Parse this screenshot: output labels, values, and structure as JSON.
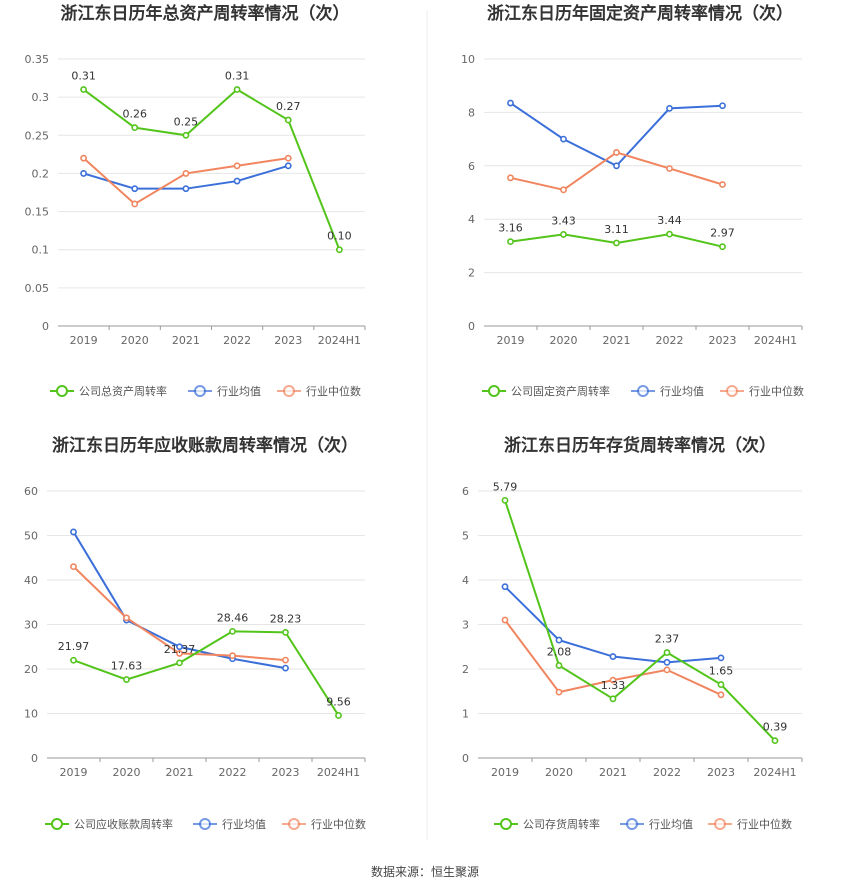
{
  "source_label": "数据来源：恒生聚源",
  "colors": {
    "company": "#52c41a",
    "industry_avg": "#3b6fd9",
    "industry_median": "#f0855f"
  },
  "chart_data": [
    {
      "type": "line",
      "title": "浙江东日历年总资产周转率情况（次）",
      "categories": [
        "2019",
        "2020",
        "2021",
        "2022",
        "2023",
        "2024H1"
      ],
      "ylim": [
        0,
        0.35
      ],
      "yticks": [
        "0",
        "0.05",
        "0.1",
        "0.15",
        "0.2",
        "0.25",
        "0.3",
        "0.35"
      ],
      "series": [
        {
          "name": "公司总资产周转率",
          "key": "company",
          "values": [
            0.31,
            0.26,
            0.25,
            0.31,
            0.27,
            0.1
          ],
          "labels": [
            "0.31",
            "0.26",
            "0.25",
            "0.31",
            "0.27",
            "0.10"
          ]
        },
        {
          "name": "行业均值",
          "key": "industry_avg",
          "values": [
            0.2,
            0.18,
            0.18,
            0.19,
            0.21,
            null
          ]
        },
        {
          "name": "行业中位数",
          "key": "industry_median",
          "values": [
            0.22,
            0.16,
            0.2,
            0.21,
            0.22,
            null
          ]
        }
      ]
    },
    {
      "type": "line",
      "title": "浙江东日历年固定资产周转率情况（次）",
      "categories": [
        "2019",
        "2020",
        "2021",
        "2022",
        "2023",
        "2024H1"
      ],
      "ylim": [
        0,
        10
      ],
      "yticks": [
        "0",
        "2",
        "4",
        "6",
        "8",
        "10"
      ],
      "series": [
        {
          "name": "公司固定资产周转率",
          "key": "company",
          "values": [
            3.16,
            3.43,
            3.11,
            3.44,
            2.97,
            null
          ],
          "labels": [
            "3.16",
            "3.43",
            "3.11",
            "3.44",
            "2.97",
            null
          ]
        },
        {
          "name": "行业均值",
          "key": "industry_avg",
          "values": [
            8.35,
            7.0,
            6.0,
            8.15,
            8.25,
            null
          ]
        },
        {
          "name": "行业中位数",
          "key": "industry_median",
          "values": [
            5.55,
            5.1,
            6.5,
            5.9,
            5.3,
            null
          ]
        }
      ]
    },
    {
      "type": "line",
      "title": "浙江东日历年应收账款周转率情况（次）",
      "categories": [
        "2019",
        "2020",
        "2021",
        "2022",
        "2023",
        "2024H1"
      ],
      "ylim": [
        0,
        60
      ],
      "yticks": [
        "0",
        "10",
        "20",
        "30",
        "40",
        "50",
        "60"
      ],
      "series": [
        {
          "name": "公司应收账款周转率",
          "key": "company",
          "values": [
            21.97,
            17.63,
            21.37,
            28.46,
            28.23,
            9.56
          ],
          "labels": [
            "21.97",
            "17.63",
            "21.37",
            "28.46",
            "28.23",
            "9.56"
          ]
        },
        {
          "name": "行业均值",
          "key": "industry_avg",
          "values": [
            50.8,
            31.0,
            25.0,
            22.3,
            20.2,
            null
          ]
        },
        {
          "name": "行业中位数",
          "key": "industry_median",
          "values": [
            43.0,
            31.5,
            23.5,
            23.0,
            22.0,
            null
          ]
        }
      ]
    },
    {
      "type": "line",
      "title": "浙江东日历年存货周转率情况（次）",
      "categories": [
        "2019",
        "2020",
        "2021",
        "2022",
        "2023",
        "2024H1"
      ],
      "ylim": [
        0,
        6
      ],
      "yticks": [
        "0",
        "1",
        "2",
        "3",
        "4",
        "5",
        "6"
      ],
      "series": [
        {
          "name": "公司存货周转率",
          "key": "company",
          "values": [
            5.79,
            2.08,
            1.33,
            2.37,
            1.65,
            0.39
          ],
          "labels": [
            "5.79",
            "2.08",
            "1.33",
            "2.37",
            "1.65",
            "0.39"
          ]
        },
        {
          "name": "行业均值",
          "key": "industry_avg",
          "values": [
            3.85,
            2.65,
            2.28,
            2.15,
            2.25,
            null
          ]
        },
        {
          "name": "行业中位数",
          "key": "industry_median",
          "values": [
            3.1,
            1.48,
            1.75,
            1.98,
            1.42,
            null
          ]
        }
      ]
    }
  ]
}
